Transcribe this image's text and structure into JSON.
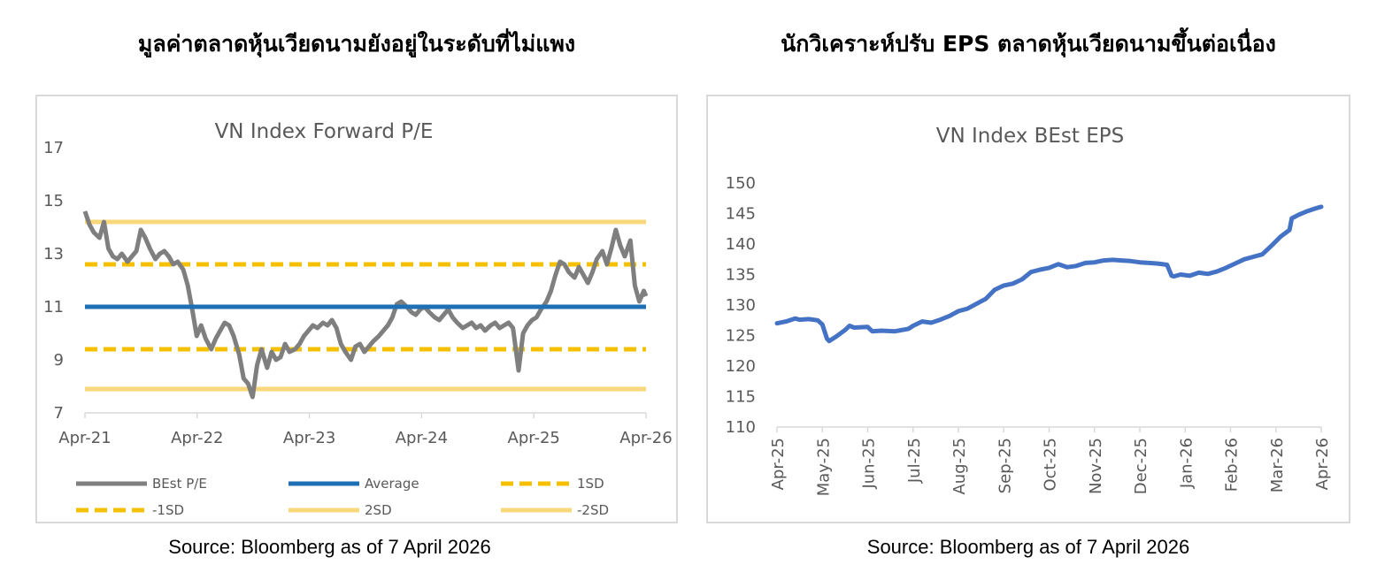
{
  "headings": {
    "left": "มูลค่าตลาดหุ้นเวียดนามยังอยู่ในระดับที่ไม่แพง",
    "right": "นักวิเคราะห์ปรับ EPS ตลาดหุ้นเวียดนามขึ้นต่อเนื่อง"
  },
  "sources": {
    "left": "Source: Bloomberg as of 7 April 2026",
    "right": "Source: Bloomberg as of 7 April 2026"
  },
  "colors": {
    "pe_line": "#7f7f7f",
    "average": "#1f6fb5",
    "sd1": "#f5c000",
    "sd2": "#f8d87a",
    "eps_line": "#4472c4",
    "axis": "#d9d9d9",
    "text": "#595959"
  },
  "chart_data": [
    {
      "type": "line",
      "title": "VN Index Forward P/E",
      "x_ticks": [
        "Apr-21",
        "Apr-22",
        "Apr-23",
        "Apr-24",
        "Apr-25",
        "Apr-26"
      ],
      "y_ticks": [
        7,
        9,
        11,
        13,
        15,
        17
      ],
      "ylim": [
        7,
        17
      ],
      "xlim": [
        2021.25,
        2026.27
      ],
      "grid": false,
      "legend_position": "bottom",
      "series": [
        {
          "name": "BEst P/E",
          "style": "solid-thick",
          "x": [
            2021.25,
            2021.29,
            2021.33,
            2021.38,
            2021.42,
            2021.46,
            2021.5,
            2021.54,
            2021.58,
            2021.63,
            2021.67,
            2021.71,
            2021.75,
            2021.79,
            2021.83,
            2021.88,
            2021.92,
            2021.96,
            2022.0,
            2022.04,
            2022.08,
            2022.13,
            2022.17,
            2022.21,
            2022.25,
            2022.29,
            2022.33,
            2022.38,
            2022.42,
            2022.46,
            2022.5,
            2022.54,
            2022.58,
            2022.63,
            2022.67,
            2022.71,
            2022.75,
            2022.79,
            2022.83,
            2022.88,
            2022.92,
            2022.96,
            2023.0,
            2023.04,
            2023.08,
            2023.13,
            2023.17,
            2023.21,
            2023.25,
            2023.29,
            2023.33,
            2023.38,
            2023.42,
            2023.46,
            2023.5,
            2023.54,
            2023.58,
            2023.63,
            2023.67,
            2023.71,
            2023.75,
            2023.79,
            2023.83,
            2023.88,
            2023.92,
            2023.96,
            2024.0,
            2024.04,
            2024.08,
            2024.13,
            2024.17,
            2024.21,
            2024.25,
            2024.29,
            2024.33,
            2024.38,
            2024.42,
            2024.46,
            2024.5,
            2024.54,
            2024.58,
            2024.63,
            2024.67,
            2024.71,
            2024.75,
            2024.79,
            2024.83,
            2024.88,
            2024.92,
            2024.96,
            2025.0,
            2025.04,
            2025.08,
            2025.13,
            2025.17,
            2025.21,
            2025.25,
            2025.29,
            2025.33,
            2025.38,
            2025.42,
            2025.46,
            2025.5,
            2025.54,
            2025.58,
            2025.63,
            2025.67,
            2025.71,
            2025.75,
            2025.79,
            2025.83,
            2025.88,
            2025.92,
            2025.96,
            2026.0,
            2026.04,
            2026.08,
            2026.13,
            2026.17,
            2026.21,
            2026.25,
            2026.27
          ],
          "values": [
            14.6,
            14.1,
            13.8,
            13.6,
            14.2,
            13.2,
            12.9,
            12.8,
            13.0,
            12.7,
            12.9,
            13.1,
            13.9,
            13.6,
            13.2,
            12.8,
            13.0,
            13.1,
            12.9,
            12.6,
            12.7,
            12.4,
            11.8,
            10.9,
            9.9,
            10.3,
            9.8,
            9.4,
            9.8,
            10.1,
            10.4,
            10.3,
            9.9,
            9.2,
            8.3,
            8.1,
            7.6,
            8.8,
            9.4,
            8.7,
            9.3,
            9.0,
            9.1,
            9.6,
            9.3,
            9.4,
            9.6,
            9.9,
            10.1,
            10.3,
            10.2,
            10.4,
            10.3,
            10.5,
            10.2,
            9.6,
            9.3,
            9.0,
            9.5,
            9.6,
            9.3,
            9.5,
            9.7,
            9.9,
            10.1,
            10.3,
            10.6,
            11.1,
            11.2,
            11.0,
            10.8,
            10.7,
            10.9,
            11.0,
            10.8,
            10.6,
            10.5,
            10.7,
            10.9,
            10.6,
            10.4,
            10.2,
            10.3,
            10.4,
            10.2,
            10.3,
            10.1,
            10.3,
            10.4,
            10.2,
            10.3,
            10.4,
            10.2,
            8.6,
            10.0,
            10.3,
            10.5,
            10.6,
            10.9,
            11.2,
            11.6,
            12.2,
            12.7,
            12.6,
            12.3,
            12.1,
            12.5,
            12.2,
            11.9,
            12.3,
            12.8,
            13.1,
            12.6,
            13.2,
            13.9,
            13.3,
            12.9,
            13.5,
            11.8,
            11.2,
            11.6,
            11.4
          ]
        },
        {
          "name": "Average",
          "style": "solid",
          "x": [
            2021.25,
            2026.27
          ],
          "values": [
            11.0,
            11.0
          ]
        },
        {
          "name": "1SD",
          "style": "dashed",
          "x": [
            2021.25,
            2026.27
          ],
          "values": [
            12.6,
            12.6
          ]
        },
        {
          "name": "-1SD",
          "style": "dashed",
          "x": [
            2021.25,
            2026.27
          ],
          "values": [
            9.4,
            9.4
          ]
        },
        {
          "name": "2SD",
          "style": "solid-light",
          "x": [
            2021.25,
            2026.27
          ],
          "values": [
            14.2,
            14.2
          ]
        },
        {
          "name": "-2SD",
          "style": "solid-light",
          "x": [
            2021.25,
            2026.27
          ],
          "values": [
            7.9,
            7.9
          ]
        }
      ]
    },
    {
      "type": "line",
      "title": "VN Index BEst EPS",
      "x_ticks": [
        "Apr-25",
        "May-25",
        "Jun-25",
        "Jul-25",
        "Aug-25",
        "Sep-25",
        "Oct-25",
        "Nov-25",
        "Dec-25",
        "Jan-26",
        "Feb-26",
        "Mar-26",
        "Apr-26"
      ],
      "y_ticks": [
        110,
        115,
        120,
        125,
        130,
        135,
        140,
        145,
        150
      ],
      "ylim": [
        110,
        150
      ],
      "xlim": [
        0,
        12
      ],
      "grid": false,
      "series": [
        {
          "style": "solid",
          "x": [
            0,
            0.2,
            0.4,
            0.5,
            0.7,
            0.9,
            1.0,
            1.1,
            1.15,
            1.3,
            1.5,
            1.6,
            1.7,
            2.0,
            2.1,
            2.3,
            2.6,
            2.9,
            3.0,
            3.2,
            3.4,
            3.6,
            3.8,
            4.0,
            4.2,
            4.4,
            4.6,
            4.8,
            5.0,
            5.2,
            5.4,
            5.6,
            5.8,
            6.0,
            6.2,
            6.4,
            6.6,
            6.8,
            7.0,
            7.2,
            7.4,
            7.6,
            7.8,
            8.0,
            8.2,
            8.4,
            8.6,
            8.7,
            8.75,
            8.9,
            9.1,
            9.3,
            9.5,
            9.7,
            9.9,
            10.1,
            10.3,
            10.5,
            10.7,
            10.9,
            11.1,
            11.3,
            11.35,
            11.5,
            11.7,
            11.9,
            12.0
          ],
          "values": [
            127.0,
            127.3,
            127.8,
            127.6,
            127.7,
            127.5,
            126.8,
            124.5,
            124.1,
            124.8,
            125.9,
            126.6,
            126.3,
            126.4,
            125.7,
            125.8,
            125.7,
            126.1,
            126.6,
            127.3,
            127.1,
            127.6,
            128.2,
            129.0,
            129.4,
            130.2,
            131.0,
            132.5,
            133.2,
            133.5,
            134.2,
            135.4,
            135.8,
            136.1,
            136.7,
            136.2,
            136.4,
            136.9,
            137.0,
            137.3,
            137.4,
            137.3,
            137.2,
            137.0,
            136.9,
            136.8,
            136.6,
            134.8,
            134.7,
            135.0,
            134.8,
            135.3,
            135.1,
            135.5,
            136.1,
            136.8,
            137.5,
            137.9,
            138.3,
            139.7,
            141.2,
            142.3,
            144.2,
            144.8,
            145.4,
            145.9,
            146.1
          ]
        }
      ]
    }
  ]
}
